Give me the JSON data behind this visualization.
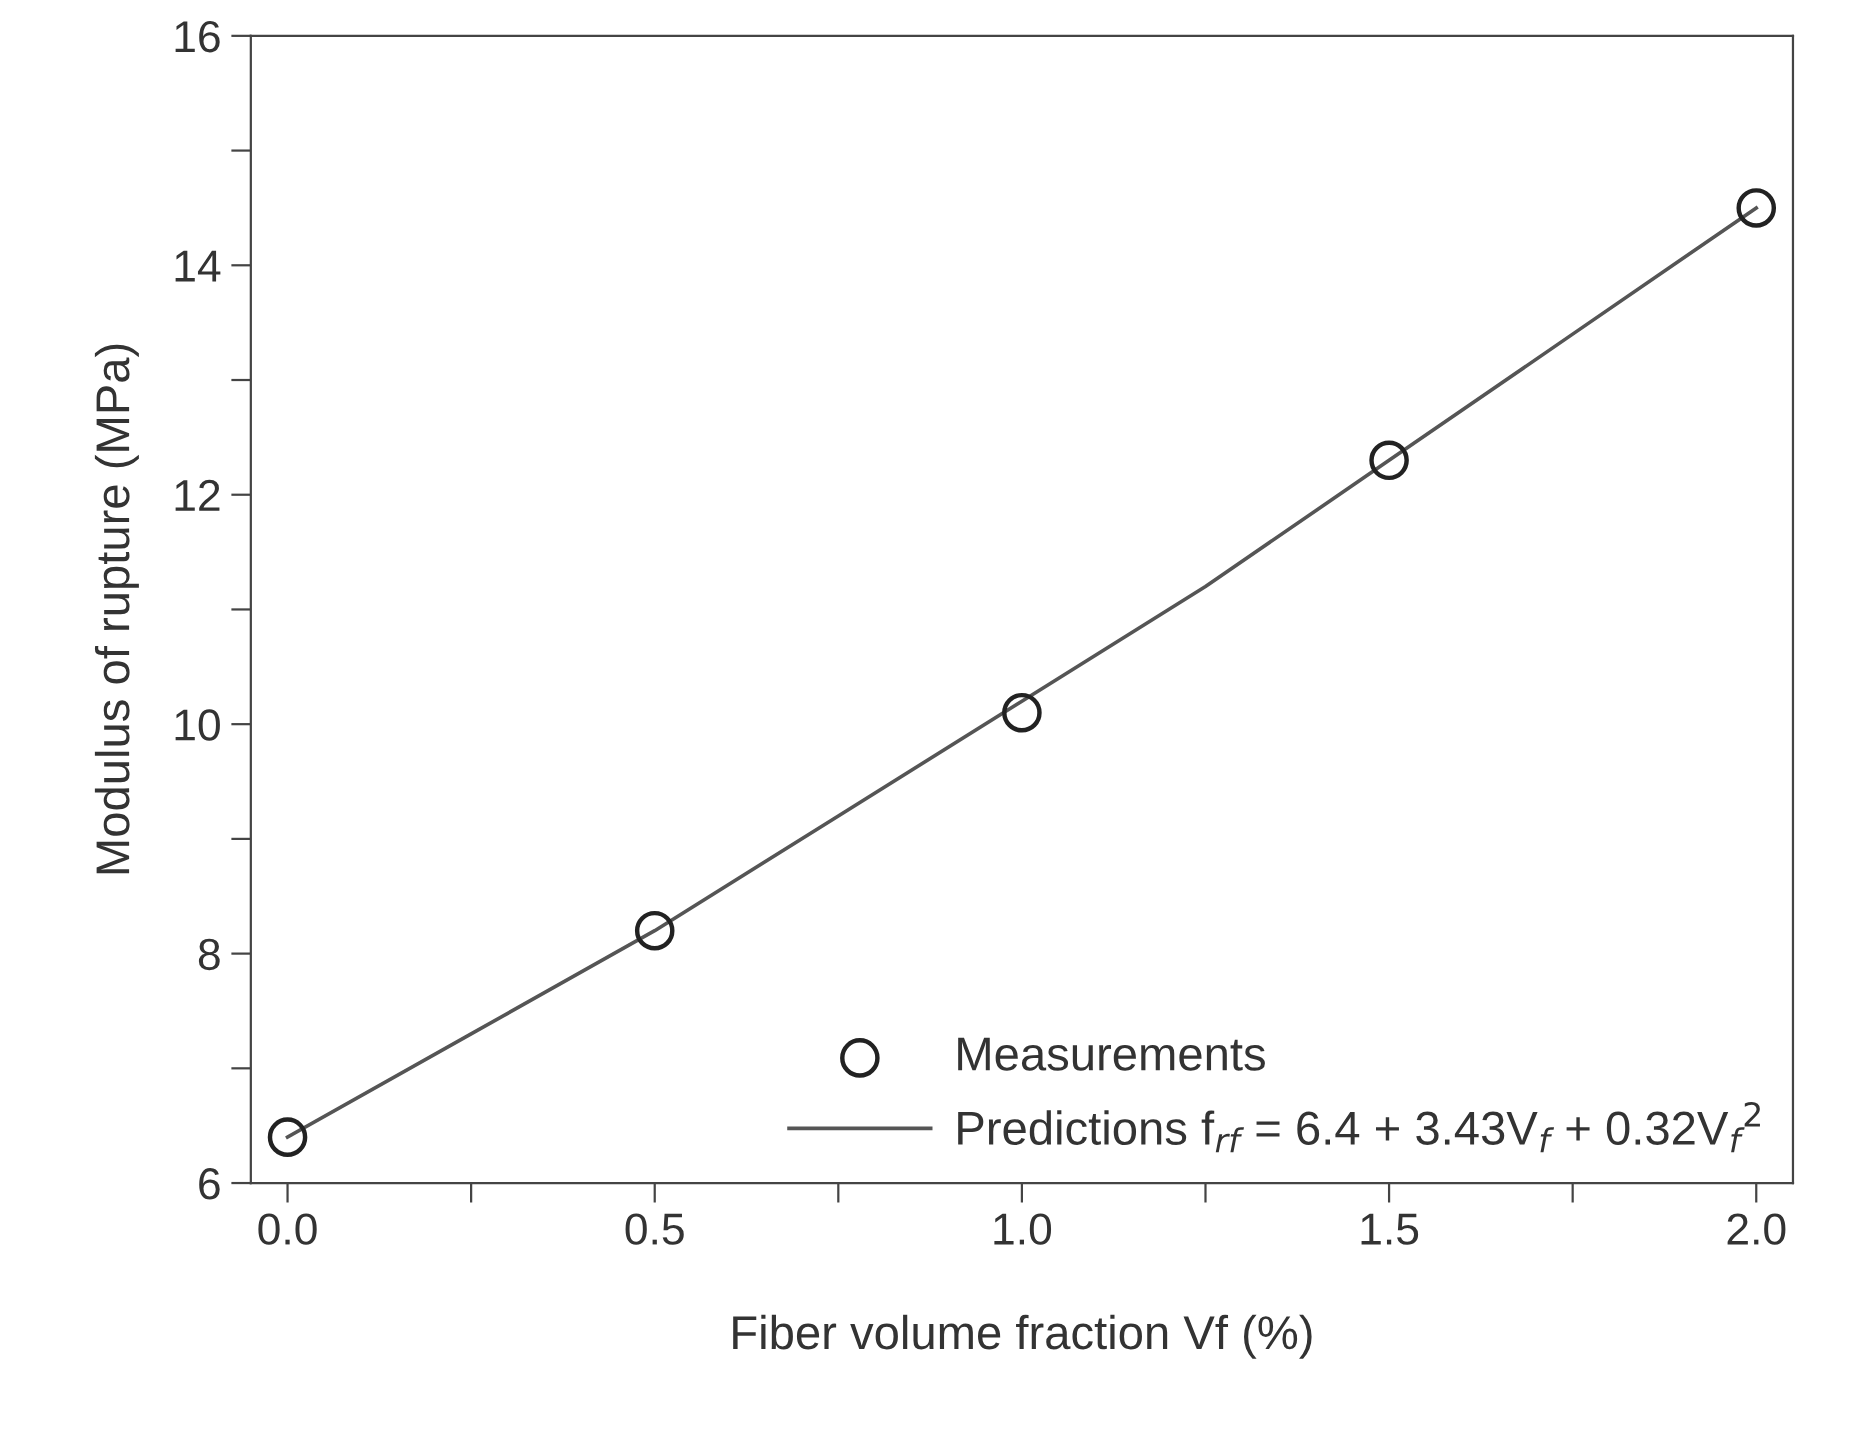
{
  "chart_data": {
    "type": "scatter",
    "xlabel": "Fiber volume fraction Vf (%)",
    "ylabel": "Modulus of rupture (MPa)",
    "series": [
      {
        "name": "Measurements",
        "color": "#222222",
        "marker": "circle",
        "x": [
          0.0,
          0.5,
          1.0,
          1.5,
          2.0
        ],
        "values": [
          6.4,
          8.2,
          10.1,
          12.3,
          14.5
        ]
      },
      {
        "name": "Predictions f$_{rf}$ = 6.4 + 3.43V$_{f}$ + 0.32V$_{f}$$^{2}$",
        "type": "line",
        "color": "#555555",
        "marker": "none",
        "line_style": "solid",
        "x": [
          0.0,
          0.25,
          0.5,
          0.75,
          1.0,
          1.25,
          1.5,
          1.75,
          2.0
        ],
        "values": [
          6.4,
          7.3,
          8.2,
          9.2,
          10.2,
          11.2,
          12.3,
          13.4,
          14.5
        ]
      }
    ],
    "xlim": [
      -0.05,
      2.05
    ],
    "ylim": [
      6,
      16
    ],
    "xticks": [
      {
        "value": 0.0,
        "label": "0.0"
      },
      {
        "value": 0.25,
        "label": null
      },
      {
        "value": 0.5,
        "label": "0.5"
      },
      {
        "value": 0.75,
        "label": null
      },
      {
        "value": 1.0,
        "label": "1.0"
      },
      {
        "value": 1.25,
        "label": null
      },
      {
        "value": 1.5,
        "label": "1.5"
      },
      {
        "value": 1.75,
        "label": null
      },
      {
        "value": 2.0,
        "label": "2.0"
      }
    ],
    "yticks": [
      6,
      {
        "value": 7,
        "label": null
      },
      8,
      {
        "value": 9,
        "label": null
      },
      10,
      {
        "value": 11,
        "label": null
      },
      12,
      {
        "value": 13,
        "label": null
      },
      14,
      {
        "value": 15,
        "label": null
      },
      16
    ],
    "grid": false,
    "legend": "bottom right"
  }
}
